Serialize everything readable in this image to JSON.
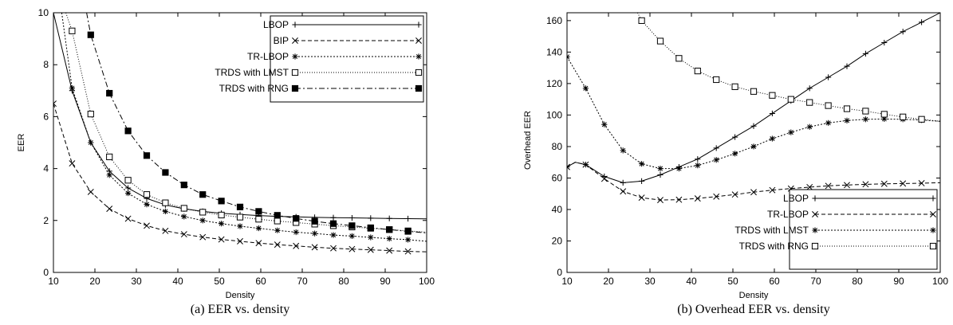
{
  "chart_data": [
    {
      "type": "line",
      "caption": "(a)  EER vs. density",
      "xlabel": "Density",
      "ylabel": "EER",
      "xlim": [
        10,
        100
      ],
      "ylim": [
        0,
        10
      ],
      "xticks": [
        10,
        20,
        30,
        40,
        50,
        60,
        70,
        80,
        90,
        100
      ],
      "yticks": [
        0,
        2,
        4,
        6,
        8,
        10
      ],
      "grid": false,
      "legend_position": "top-right",
      "series": [
        {
          "name": "LBOP",
          "marker": "plus",
          "dash": "",
          "x": [
            10,
            14.5,
            19,
            23.5,
            28,
            32.5,
            37,
            41.5,
            46,
            50.5,
            55,
            59.5,
            64,
            68.5,
            73,
            77.5,
            82,
            86.5,
            91,
            95.5,
            100
          ],
          "y": [
            10,
            7.0,
            5.0,
            3.9,
            3.25,
            2.85,
            2.6,
            2.45,
            2.35,
            2.28,
            2.23,
            2.19,
            2.16,
            2.14,
            2.12,
            2.11,
            2.1,
            2.09,
            2.08,
            2.07,
            2.06
          ],
          "marker_x": [
            10,
            14.5,
            19,
            23.5,
            28,
            32.5,
            37,
            41.5,
            46,
            50.5,
            55,
            59.5,
            64,
            68.5,
            73,
            77.5,
            82,
            86.5,
            91,
            95.5
          ]
        },
        {
          "name": "BIP",
          "marker": "cross",
          "dash": "5,3",
          "x": [
            10,
            14.5,
            19,
            23.5,
            28,
            32.5,
            37,
            41.5,
            46,
            50.5,
            55,
            59.5,
            64,
            68.5,
            73,
            77.5,
            82,
            86.5,
            91,
            95.5,
            100
          ],
          "y": [
            6.5,
            4.2,
            3.1,
            2.45,
            2.07,
            1.8,
            1.6,
            1.47,
            1.36,
            1.27,
            1.2,
            1.13,
            1.07,
            1.02,
            0.97,
            0.93,
            0.9,
            0.87,
            0.84,
            0.81,
            0.79
          ],
          "marker_x": [
            10,
            14.5,
            19,
            23.5,
            28,
            32.5,
            37,
            41.5,
            46,
            50.5,
            55,
            59.5,
            64,
            68.5,
            73,
            77.5,
            82,
            86.5,
            91,
            95.5
          ]
        },
        {
          "name": "TR-LBOP",
          "marker": "star",
          "dash": "2,2",
          "x": [
            12,
            14.5,
            19,
            23.5,
            28,
            32.5,
            37,
            41.5,
            46,
            50.5,
            55,
            59.5,
            64,
            68.5,
            73,
            77.5,
            82,
            86.5,
            91,
            95.5,
            100
          ],
          "y": [
            10,
            7.1,
            5.0,
            3.75,
            3.05,
            2.62,
            2.35,
            2.15,
            2.0,
            1.88,
            1.78,
            1.7,
            1.62,
            1.55,
            1.5,
            1.44,
            1.4,
            1.35,
            1.3,
            1.26,
            1.2
          ],
          "marker_x": [
            14.5,
            19,
            23.5,
            28,
            32.5,
            37,
            41.5,
            46,
            50.5,
            55,
            59.5,
            64,
            68.5,
            73,
            77.5,
            82,
            86.5,
            91,
            95.5
          ]
        },
        {
          "name": "TRDS with LMST",
          "marker": "square-open",
          "dash": "1,2",
          "x": [
            13,
            14.5,
            19,
            23.5,
            28,
            32.5,
            37,
            41.5,
            46,
            50.5,
            55,
            59.5,
            64,
            68.5,
            73,
            77.5,
            82,
            86.5,
            91,
            95.5,
            100
          ],
          "y": [
            10,
            9.3,
            6.1,
            4.45,
            3.55,
            3.0,
            2.68,
            2.47,
            2.32,
            2.21,
            2.13,
            2.05,
            1.98,
            1.92,
            1.86,
            1.8,
            1.75,
            1.7,
            1.65,
            1.6,
            1.55
          ],
          "marker_x": [
            14.5,
            19,
            23.5,
            28,
            32.5,
            37,
            41.5,
            46,
            50.5,
            55,
            59.5,
            64,
            68.5,
            73,
            77.5,
            82,
            86.5,
            91,
            95.5
          ]
        },
        {
          "name": "TRDS with RNG",
          "marker": "square-filled",
          "dash": "7,3,2,3",
          "x": [
            18,
            19,
            23.5,
            28,
            32.5,
            37,
            41.5,
            46,
            50.5,
            55,
            59.5,
            64,
            68.5,
            73,
            77.5,
            82,
            86.5,
            91,
            95.5,
            100
          ],
          "y": [
            10,
            9.15,
            6.9,
            5.45,
            4.5,
            3.85,
            3.37,
            3.0,
            2.75,
            2.52,
            2.35,
            2.2,
            2.08,
            1.97,
            1.88,
            1.8,
            1.72,
            1.65,
            1.58,
            1.52
          ],
          "marker_x": [
            19,
            23.5,
            28,
            32.5,
            37,
            41.5,
            46,
            50.5,
            55,
            59.5,
            64,
            68.5,
            73,
            77.5,
            82,
            86.5,
            91,
            95.5
          ]
        }
      ]
    },
    {
      "type": "line",
      "caption": "(b)  Overhead EER vs. density",
      "xlabel": "Density",
      "ylabel": "Overhead EER",
      "xlim": [
        10,
        100
      ],
      "ylim": [
        0,
        165
      ],
      "xticks": [
        10,
        20,
        30,
        40,
        50,
        60,
        70,
        80,
        90,
        100
      ],
      "yticks": [
        0,
        20,
        40,
        60,
        80,
        100,
        120,
        140,
        160
      ],
      "grid": false,
      "legend_position": "bottom-right",
      "series": [
        {
          "name": "LBOP",
          "marker": "plus",
          "dash": "",
          "x": [
            10,
            12,
            14.5,
            19,
            23.5,
            28,
            32.5,
            37,
            41.5,
            46,
            50.5,
            55,
            59.5,
            64,
            68.5,
            73,
            77.5,
            82,
            86.5,
            91,
            95.5,
            100
          ],
          "y": [
            67,
            70,
            68.5,
            61,
            57,
            58,
            62,
            67,
            72,
            79,
            86,
            93,
            101,
            109,
            117,
            124,
            131,
            139,
            146,
            153,
            159,
            165
          ],
          "marker_x": [
            10,
            14.5,
            19,
            23.5,
            28,
            32.5,
            37,
            41.5,
            46,
            50.5,
            55,
            59.5,
            64,
            68.5,
            73,
            77.5,
            82,
            86.5,
            91,
            95.5
          ]
        },
        {
          "name": "TR-LBOP",
          "marker": "cross",
          "dash": "5,3",
          "x": [
            10,
            12,
            14.5,
            19,
            23.5,
            28,
            32.5,
            37,
            41.5,
            46,
            50.5,
            55,
            59.5,
            64,
            68.5,
            73,
            77.5,
            82,
            86.5,
            91,
            95.5,
            100
          ],
          "y": [
            67,
            70,
            68.5,
            59.5,
            51.5,
            47.5,
            46,
            46.2,
            47,
            48.2,
            49.5,
            51,
            52.3,
            53.3,
            54.2,
            55,
            55.5,
            56,
            56.3,
            56.5,
            56.7,
            57
          ],
          "marker_x": [
            10,
            14.5,
            19,
            23.5,
            28,
            32.5,
            37,
            41.5,
            46,
            50.5,
            55,
            59.5,
            64,
            68.5,
            73,
            77.5,
            82,
            86.5,
            91,
            95.5
          ]
        },
        {
          "name": "TRDS with LMST",
          "marker": "star",
          "dash": "2,2",
          "x": [
            10,
            14.5,
            19,
            23.5,
            28,
            32.5,
            37,
            41.5,
            46,
            50.5,
            55,
            59.5,
            64,
            68.5,
            73,
            77.5,
            82,
            86.5,
            91,
            95.5,
            100
          ],
          "y": [
            137,
            117,
            94,
            77.5,
            69,
            66,
            66,
            68,
            71.5,
            75.5,
            80,
            85,
            89,
            92.5,
            95,
            96.5,
            97.3,
            97.5,
            97.3,
            96.8,
            96
          ],
          "marker_x": [
            10,
            14.5,
            19,
            23.5,
            28,
            32.5,
            37,
            41.5,
            46,
            50.5,
            55,
            59.5,
            64,
            68.5,
            73,
            77.5,
            82,
            86.5,
            91,
            95.5
          ]
        },
        {
          "name": "TRDS with RNG",
          "marker": "square-open",
          "dash": "1,2",
          "x": [
            27,
            28,
            32.5,
            37,
            41.5,
            46,
            50.5,
            55,
            59.5,
            64,
            68.5,
            73,
            77.5,
            82,
            86.5,
            91,
            95.5,
            100
          ],
          "y": [
            165,
            160,
            147,
            136,
            128,
            122.5,
            118,
            115,
            112.5,
            110,
            108,
            106,
            104,
            102.5,
            100.5,
            98.8,
            97.3,
            96
          ],
          "marker_x": [
            28,
            32.5,
            37,
            41.5,
            46,
            50.5,
            55,
            59.5,
            64,
            68.5,
            73,
            77.5,
            82,
            86.5,
            91,
            95.5
          ]
        }
      ]
    }
  ]
}
